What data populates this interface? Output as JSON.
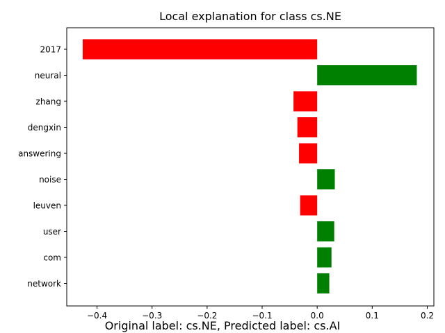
{
  "chart_data": {
    "type": "bar",
    "orientation": "horizontal",
    "title": "Local explanation for class cs.NE",
    "caption": "Original label: cs.NE, Predicted label: cs.AI",
    "xlabel": "",
    "ylabel": "",
    "categories": [
      "2017",
      "neural",
      "zhang",
      "dengxin",
      "answering",
      "noise",
      "leuven",
      "user",
      "com",
      "network"
    ],
    "values": [
      -0.426,
      0.181,
      -0.043,
      -0.036,
      -0.033,
      0.032,
      -0.031,
      0.031,
      0.026,
      0.022
    ],
    "xlim": [
      -0.455,
      0.212
    ],
    "xticks": [
      -0.4,
      -0.3,
      -0.2,
      -0.1,
      0.0,
      0.1,
      0.2
    ],
    "xtick_labels": [
      "−0.4",
      "−0.3",
      "−0.2",
      "−0.1",
      "0.0",
      "0.1",
      "0.2"
    ],
    "grid": false,
    "colors": {
      "positive": "#008000",
      "negative": "#ff0000",
      "axis": "#000000"
    }
  }
}
